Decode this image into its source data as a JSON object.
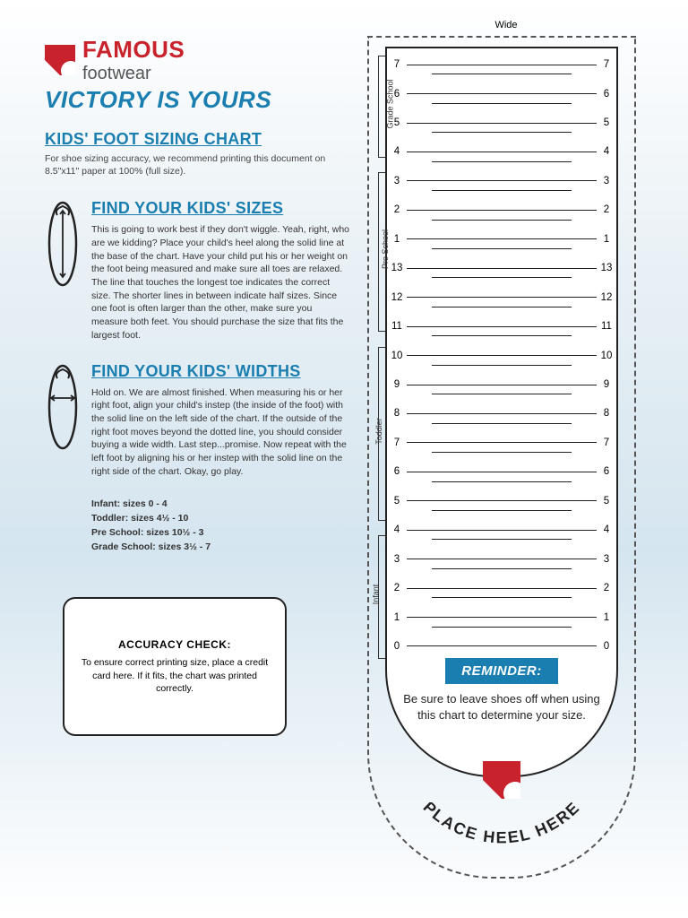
{
  "brand": {
    "name": "FAMOUS",
    "sub": "footwear",
    "tagline": "VICTORY IS YOURS"
  },
  "title": "KIDS' FOOT SIZING CHART",
  "intro": "For shoe sizing accuracy, we recommend printing this document on 8.5\"x11\" paper at 100% (full size).",
  "sizes": {
    "heading": "FIND YOUR KIDS' SIZES",
    "text": "This is going to work best if they don't wiggle. Yeah, right, who are we kidding?  Place your child's heel along the solid line at the base of the chart.  Have your child put his or her weight on the foot being measured and make sure all toes are relaxed.  The line that touches the longest toe indicates the correct size.  The shorter lines in between indicate half sizes.  Since one foot  is often larger than the other, make sure you measure both feet. You should purchase the size that fits the largest foot."
  },
  "widths": {
    "heading": "FIND YOUR KIDS' WIDTHS",
    "text": "Hold on.  We are almost finished.  When measuring his or her right foot, align your child's instep (the inside of the foot) with the solid line on the left side of the chart.  If the outside of the right foot moves beyond the dotted line,  you should consider buying a wide width.  Last step...promise.  Now repeat with the left foot by aligning his or her instep with the solid line on the right side of the chart.  Okay, go play."
  },
  "ranges": {
    "infant": "Infant: sizes 0 - 4",
    "toddler": "Toddler: sizes 4½ - 10",
    "preschool": "Pre School: sizes 10½ - 3",
    "gradeschool": "Grade School: sizes 3½ - 7"
  },
  "accuracy": {
    "title": "ACCURACY CHECK:",
    "text": "To ensure correct printing size, place a credit card here.  If it fits, the chart was printed correctly."
  },
  "chart": {
    "wide_label": "Wide",
    "groups": [
      {
        "label": "Grade School",
        "topPct": 1,
        "heightPct": 14
      },
      {
        "label": "Pre School",
        "topPct": 17,
        "heightPct": 22
      },
      {
        "label": "Toddler",
        "topPct": 41,
        "heightPct": 24
      },
      {
        "label": "Infant",
        "topPct": 67,
        "heightPct": 17
      }
    ],
    "sizes": [
      "7",
      "6",
      "5",
      "4",
      "3",
      "2",
      "1",
      "13",
      "12",
      "11",
      "10",
      "9",
      "8",
      "7",
      "6",
      "5",
      "4",
      "3",
      "2",
      "1",
      "0"
    ],
    "topPct": 1.5,
    "stepPct": 4.0
  },
  "reminder": {
    "badge": "REMINDER:",
    "text": "Be sure to leave shoes off when using this chart to determine your size."
  },
  "heel": "PLACE HEEL HERE",
  "colors": {
    "red": "#c8232c",
    "blue": "#1a7fb0",
    "text": "#333333"
  }
}
